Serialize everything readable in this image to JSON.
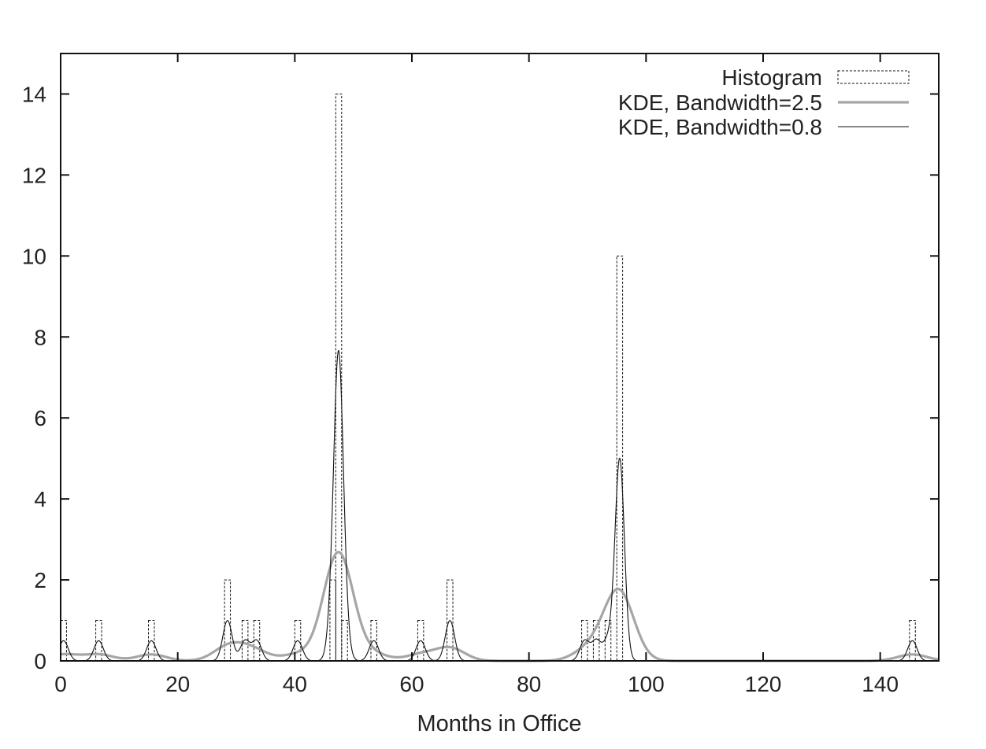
{
  "chart_data": {
    "type": "bar",
    "title": "",
    "xlabel": "Months in Office",
    "ylabel": "",
    "xlim": [
      0,
      150
    ],
    "ylim": [
      0,
      15
    ],
    "xticks": [
      0,
      20,
      40,
      60,
      80,
      100,
      120,
      140
    ],
    "yticks": [
      0,
      2,
      4,
      6,
      8,
      10,
      12,
      14
    ],
    "grid": false,
    "legend_position": "top-right",
    "histogram": {
      "name": "Histogram",
      "bin_width": 1,
      "bins": [
        {
          "x": 0,
          "count": 1
        },
        {
          "x": 6,
          "count": 1
        },
        {
          "x": 15,
          "count": 1
        },
        {
          "x": 28,
          "count": 2
        },
        {
          "x": 31,
          "count": 1
        },
        {
          "x": 33,
          "count": 1
        },
        {
          "x": 40,
          "count": 1
        },
        {
          "x": 46,
          "count": 2
        },
        {
          "x": 47,
          "count": 14
        },
        {
          "x": 48,
          "count": 1
        },
        {
          "x": 53,
          "count": 1
        },
        {
          "x": 61,
          "count": 1
        },
        {
          "x": 66,
          "count": 2
        },
        {
          "x": 89,
          "count": 1
        },
        {
          "x": 91,
          "count": 1
        },
        {
          "x": 93,
          "count": 1
        },
        {
          "x": 95,
          "count": 10
        },
        {
          "x": 145,
          "count": 1
        }
      ]
    },
    "series": [
      {
        "name": "KDE, Bandwidth=2.5",
        "bandwidth": 2.5,
        "color": "#a6a6a6",
        "style": "thick"
      },
      {
        "name": "KDE, Bandwidth=0.8",
        "bandwidth": 0.8,
        "color": "#111111",
        "style": "thin"
      }
    ]
  }
}
